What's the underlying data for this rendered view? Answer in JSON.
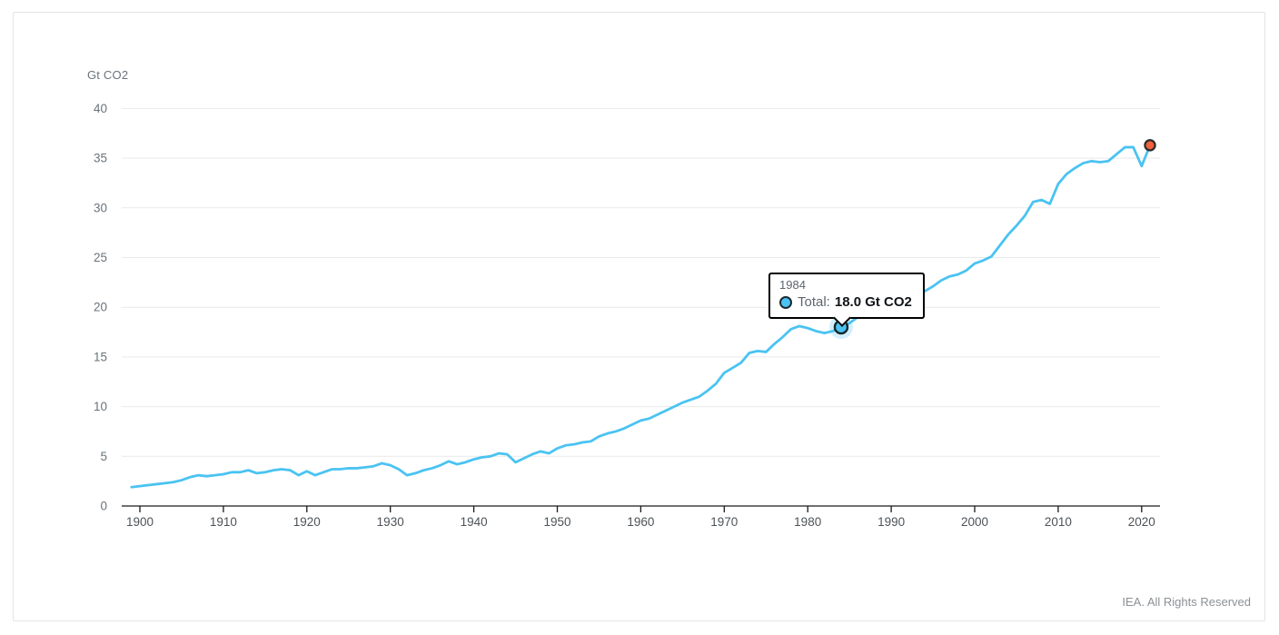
{
  "footer": {
    "text": "IEA. All Rights Reserved"
  },
  "tooltip": {
    "year": "1984",
    "series_label": "Total:",
    "value": "18.0 Gt CO2"
  },
  "colors": {
    "line": "#4ac3f2",
    "highlight_fill": "#4ac3f2",
    "highlight_halo": "rgba(74,195,242,0.25)",
    "highlight_stroke": "#16262e",
    "end_dot_fill": "#f2603e",
    "end_dot_stroke": "#2b2b2b",
    "grid": "#e9e9e9",
    "axis": "#1a1a1a",
    "xtick_label": "#4d5358",
    "ytick_label": "#6a737a",
    "tooltip_border": "#000000"
  },
  "chart_data": {
    "type": "line",
    "title": "",
    "unit_label": "Gt CO2",
    "xlabel": "",
    "ylabel": "Gt CO2",
    "xlim": [
      1899,
      2021
    ],
    "ylim": [
      0,
      40
    ],
    "grid": "horizontal",
    "legend": "none",
    "xticks": [
      1900,
      1910,
      1920,
      1930,
      1940,
      1950,
      1960,
      1970,
      1980,
      1990,
      2000,
      2010,
      2020
    ],
    "yticks": [
      0,
      5,
      10,
      15,
      20,
      25,
      30,
      35,
      40
    ],
    "x_start": 1899,
    "x_end": 2021,
    "series": [
      {
        "name": "Total",
        "values": [
          1.9,
          2.0,
          2.1,
          2.2,
          2.3,
          2.4,
          2.6,
          2.9,
          3.1,
          3.0,
          3.1,
          3.2,
          3.4,
          3.4,
          3.6,
          3.3,
          3.4,
          3.6,
          3.7,
          3.6,
          3.1,
          3.5,
          3.1,
          3.4,
          3.7,
          3.7,
          3.8,
          3.8,
          3.9,
          4.0,
          4.3,
          4.1,
          3.7,
          3.1,
          3.3,
          3.6,
          3.8,
          4.1,
          4.5,
          4.2,
          4.4,
          4.7,
          4.9,
          5.0,
          5.3,
          5.2,
          4.4,
          4.8,
          5.2,
          5.5,
          5.3,
          5.8,
          6.1,
          6.2,
          6.4,
          6.5,
          7.0,
          7.3,
          7.5,
          7.8,
          8.2,
          8.6,
          8.8,
          9.2,
          9.6,
          10.0,
          10.4,
          10.7,
          11.0,
          11.6,
          12.3,
          13.4,
          13.9,
          14.4,
          15.4,
          15.6,
          15.5,
          16.3,
          17.0,
          17.8,
          18.1,
          17.9,
          17.6,
          17.4,
          17.6,
          18.0,
          18.4,
          19.0,
          19.5,
          20.1,
          20.6,
          20.9,
          21.2,
          21.2,
          21.3,
          21.6,
          22.1,
          22.7,
          23.1,
          23.3,
          23.7,
          24.4,
          24.7,
          25.1,
          26.2,
          27.3,
          28.2,
          29.2,
          30.6,
          30.8,
          30.4,
          32.4,
          33.4,
          34.0,
          34.5,
          34.7,
          34.6,
          34.7,
          35.4,
          36.1,
          36.1,
          34.2,
          36.3
        ]
      }
    ],
    "highlight_point": {
      "x": 1984,
      "y": 18.0
    },
    "end_point": {
      "x": 2021,
      "y": 36.3
    }
  }
}
